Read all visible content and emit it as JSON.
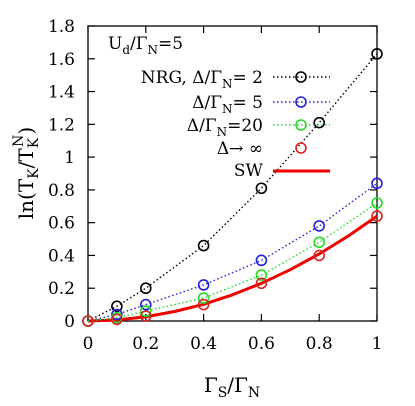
{
  "chart_data": {
    "type": "line",
    "annotation": "U_d/Γ_N=5",
    "xlabel": "Γ_S/Γ_N",
    "ylabel": "ln(T_K/T_K^N)",
    "xlim": [
      0,
      1
    ],
    "ylim": [
      0,
      1.8
    ],
    "xticks": [
      "0",
      "0.2",
      "0.4",
      "0.6",
      "0.8",
      "1"
    ],
    "yticks": [
      "0",
      "0.2",
      "0.4",
      "0.6",
      "0.8",
      "1",
      "1.2",
      "1.4",
      "1.6",
      "1.8"
    ],
    "grid": false,
    "legend_position": "top-right",
    "series": [
      {
        "name": "NRG, Δ/Γ_N= 2",
        "color": "#000000",
        "style": "dotted-markers",
        "x": [
          0,
          0.1,
          0.2,
          0.4,
          0.6,
          0.8,
          1.0
        ],
        "y": [
          0,
          0.09,
          0.2,
          0.46,
          0.81,
          1.21,
          1.63
        ]
      },
      {
        "name": "Δ/Γ_N= 5",
        "color": "#2222dd",
        "style": "dotted-markers",
        "x": [
          0,
          0.1,
          0.2,
          0.4,
          0.6,
          0.8,
          1.0
        ],
        "y": [
          0,
          0.04,
          0.1,
          0.22,
          0.37,
          0.58,
          0.84
        ]
      },
      {
        "name": "Δ/Γ_N=20",
        "color": "#22dd22",
        "style": "dotted-markers",
        "x": [
          0,
          0.1,
          0.2,
          0.4,
          0.6,
          0.8,
          1.0
        ],
        "y": [
          0,
          0.02,
          0.06,
          0.14,
          0.28,
          0.48,
          0.72
        ]
      },
      {
        "name": "Δ→ ∞",
        "color": "#dd2222",
        "style": "markers",
        "x": [
          0,
          0.1,
          0.2,
          0.4,
          0.6,
          0.8,
          1.0
        ],
        "y": [
          0,
          0.01,
          0.03,
          0.1,
          0.23,
          0.4,
          0.64
        ]
      },
      {
        "name": "SW",
        "color": "#ee0000",
        "style": "solid",
        "x": [
          0,
          0.1,
          0.2,
          0.3,
          0.4,
          0.5,
          0.6,
          0.7,
          0.8,
          0.9,
          1.0
        ],
        "y": [
          0,
          0.006,
          0.026,
          0.058,
          0.102,
          0.16,
          0.23,
          0.313,
          0.409,
          0.518,
          0.64
        ]
      }
    ]
  }
}
